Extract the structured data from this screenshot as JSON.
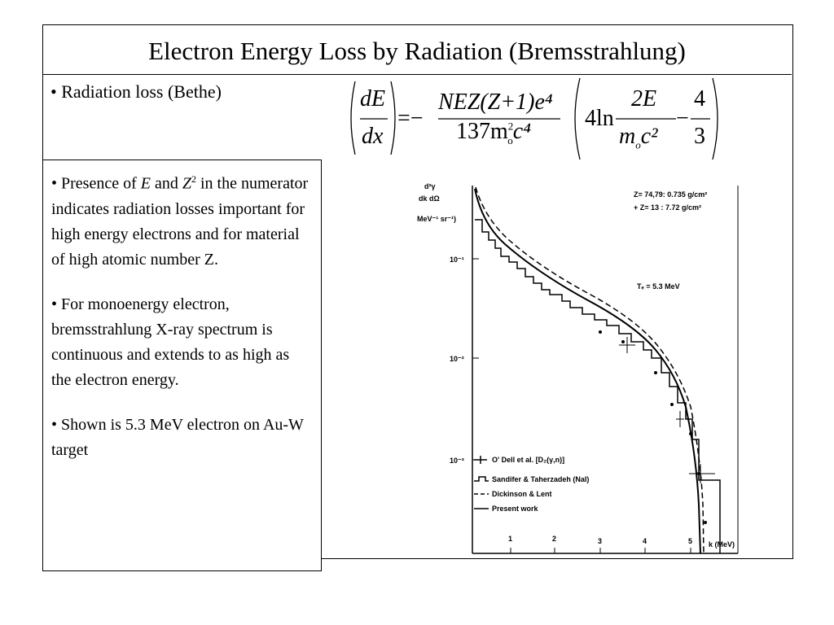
{
  "title": "Electron Energy Loss by Radiation (Bremsstrahlung)",
  "heading_bullet": "• Radiation loss (Bethe)",
  "formula": {
    "dE": "dE",
    "dx": "dx",
    "eq": "=−",
    "num": "NEZ(Z+1)e⁴",
    "den_a": "137m",
    "den_sup": "2",
    "den_sub": "o",
    "den_b": "c⁴",
    "ln": "4ln",
    "frac2_num": "2E",
    "frac2_den_a": "m",
    "frac2_den_sub": "o",
    "frac2_den_b": "c²",
    "minus": "−",
    "frac3_num": "4",
    "frac3_den": "3"
  },
  "bullets": [
    {
      "parts": [
        "• Presence of ",
        "E",
        " and ",
        "Z",
        "2",
        " in the numerator indicates radiation losses important for high energy electrons and for material of high atomic number Z."
      ]
    },
    {
      "parts": [
        "• For monoenergy electron, bremsstrahlung X-ray spectrum is continuous and extends to as high as the electron energy."
      ]
    },
    {
      "parts": [
        "• Shown is 5.3 MeV electron on Au-W target"
      ]
    }
  ],
  "figure": {
    "y_label_top": "d²γ",
    "y_label_bottom": "dk dΩ",
    "y_unit": "MeV⁻¹ sr⁻¹)",
    "yticks": [
      "10⁻¹",
      "10⁻²",
      "10⁻³"
    ],
    "xticks": [
      "1",
      "2",
      "3",
      "4",
      "5"
    ],
    "x_label": "k (MeV)",
    "note1": "Z= 74,79: 0.735 g/cm²",
    "note2": "+ Z= 13   :  7.72 g/cm²",
    "energy": "Tₑ = 5.3 MeV",
    "legend": [
      "O' Dell et al.  [D₂(γ,n)]",
      "Sandifer &  Taherzadeh (NaI)",
      "Dickinson & Lent",
      "Present work"
    ]
  }
}
